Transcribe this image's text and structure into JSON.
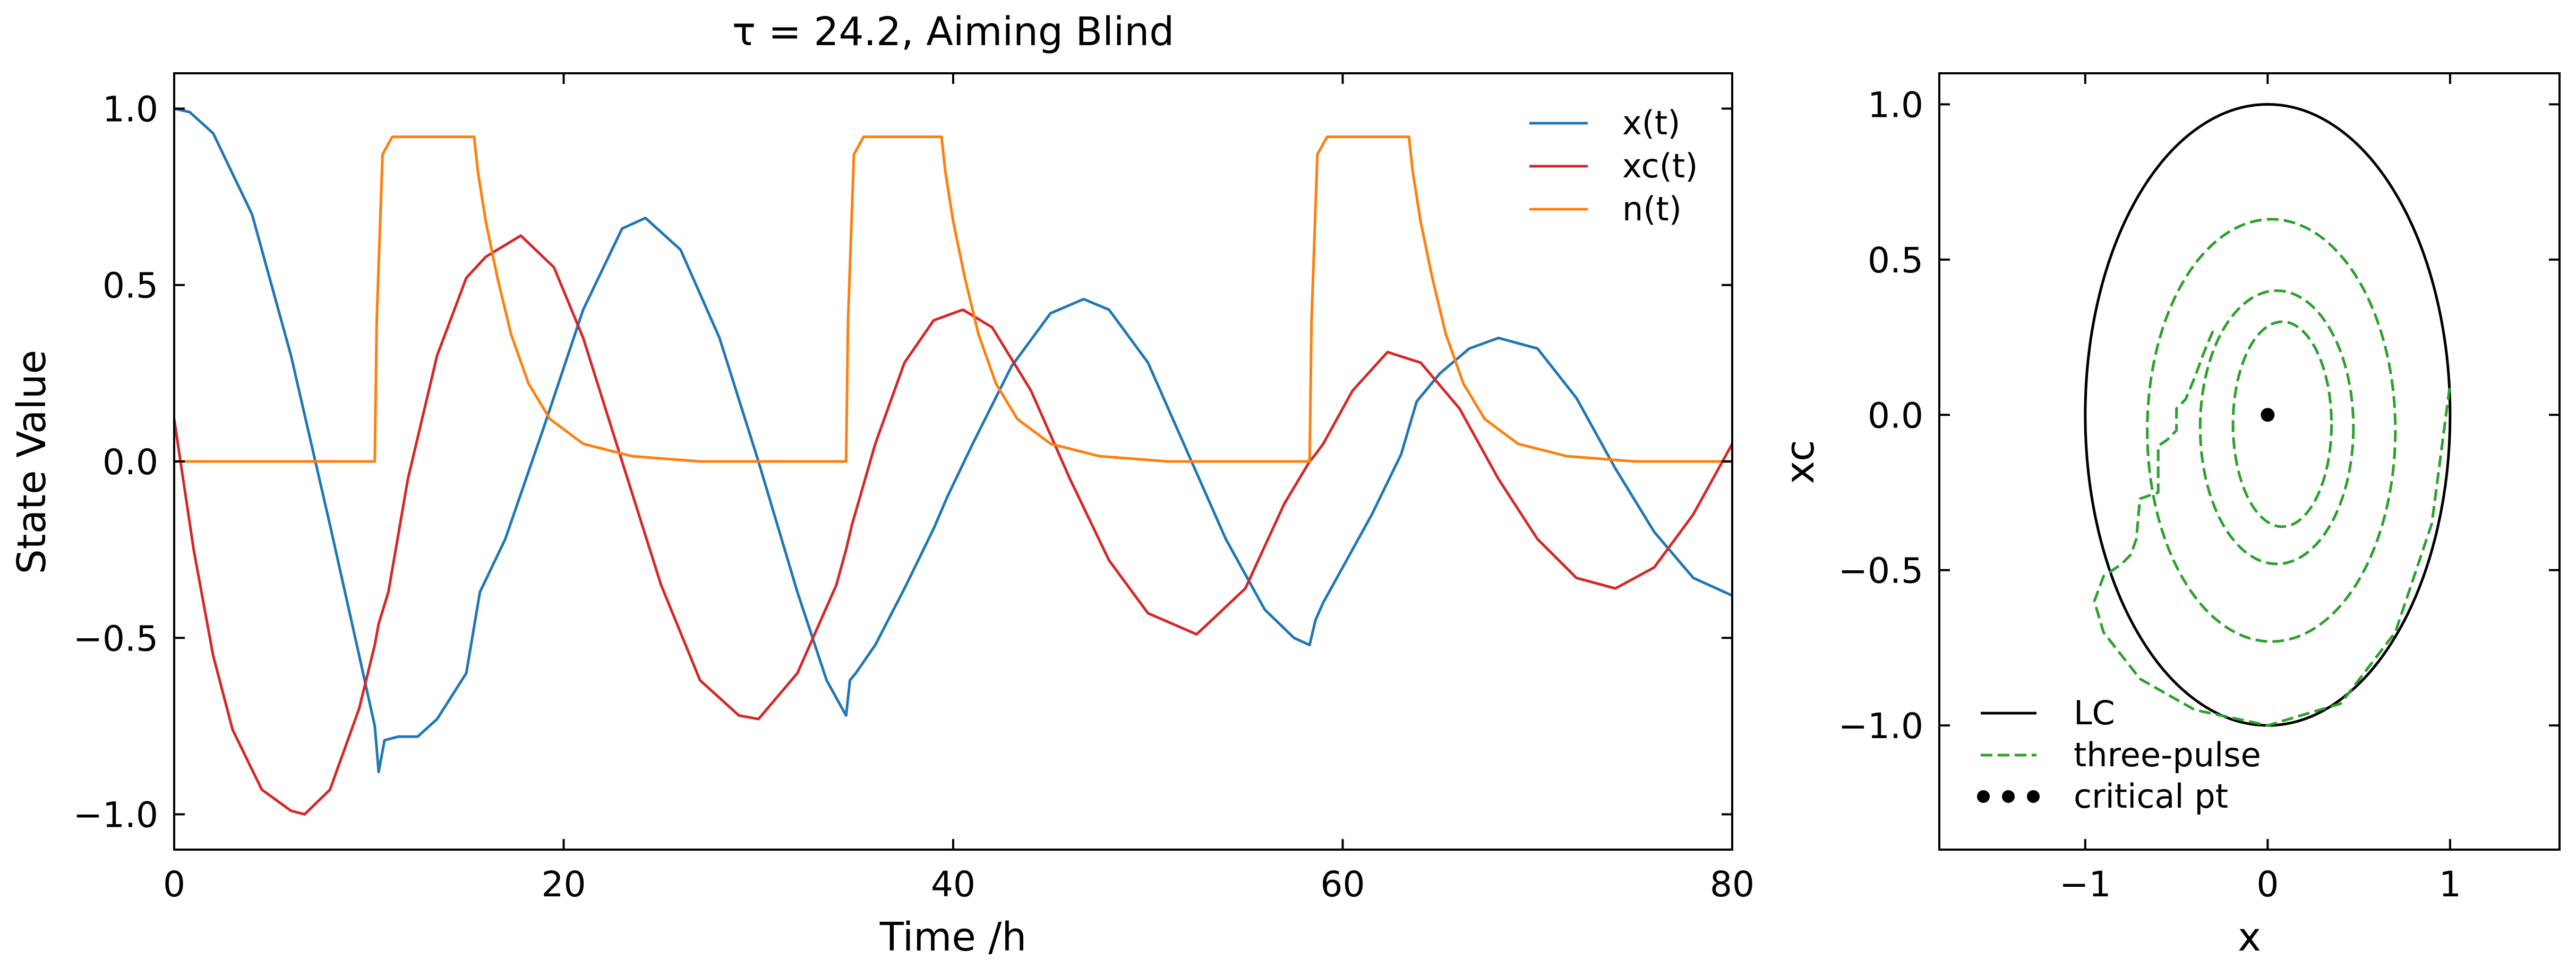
{
  "chart_data": [
    {
      "type": "line",
      "title": "τ = 24.2, Aiming Blind",
      "xlabel": "Time /h",
      "ylabel": "State Value",
      "xlim": [
        0,
        80
      ],
      "ylim": [
        -1.1,
        1.1
      ],
      "xticks": [
        0,
        20,
        40,
        60,
        80
      ],
      "xtick_labels": [
        "0",
        "20",
        "40",
        "60",
        "80"
      ],
      "yticks": [
        -1.0,
        -0.5,
        0.0,
        0.5,
        1.0
      ],
      "ytick_labels": [
        "−1.0",
        "−0.5",
        "0.0",
        "0.5",
        "1.0"
      ],
      "grid": false,
      "legend_position": "top-right",
      "series": [
        {
          "name": "x(t)",
          "color": "#1f77b4",
          "x": [
            0,
            0.8,
            2,
            4,
            6,
            8,
            9.5,
            10.3,
            10.5,
            10.8,
            11.5,
            12.5,
            13.5,
            15,
            15.7,
            17,
            19,
            21,
            23,
            24.2,
            26,
            28,
            30,
            32,
            33.5,
            34.5,
            34.7,
            35,
            36,
            37.5,
            39,
            39.7,
            41,
            43,
            45,
            46.7,
            48,
            50,
            52,
            54,
            56,
            57.5,
            58.3,
            58.6,
            59,
            60,
            61.5,
            63,
            63.8,
            65,
            66.5,
            68,
            70,
            72,
            74,
            76,
            78,
            80
          ],
          "y": [
            1.0,
            0.99,
            0.93,
            0.7,
            0.3,
            -0.18,
            -0.55,
            -0.75,
            -0.88,
            -0.79,
            -0.78,
            -0.78,
            -0.73,
            -0.6,
            -0.37,
            -0.22,
            0.1,
            0.43,
            0.66,
            0.69,
            0.6,
            0.35,
            0.0,
            -0.37,
            -0.62,
            -0.72,
            -0.62,
            -0.6,
            -0.52,
            -0.36,
            -0.19,
            -0.1,
            0.05,
            0.27,
            0.42,
            0.46,
            0.43,
            0.28,
            0.03,
            -0.22,
            -0.42,
            -0.5,
            -0.52,
            -0.45,
            -0.4,
            -0.3,
            -0.15,
            0.02,
            0.17,
            0.25,
            0.32,
            0.35,
            0.32,
            0.18,
            -0.02,
            -0.2,
            -0.33,
            -0.38
          ]
        },
        {
          "name": "xc(t)",
          "color": "#d62728",
          "x": [
            0,
            1,
            2,
            3,
            4.5,
            6,
            6.7,
            8,
            9.5,
            10.3,
            10.5,
            11,
            12,
            13.5,
            15,
            16,
            17.8,
            19.5,
            21,
            23,
            25,
            27,
            29,
            30,
            32,
            34,
            34.5,
            34.8,
            36,
            37.5,
            39,
            40.5,
            42,
            44,
            46,
            48,
            50,
            52.5,
            55,
            57,
            58.3,
            58.6,
            59,
            60.5,
            62.3,
            64,
            66,
            68,
            70,
            72,
            74,
            76,
            78,
            80
          ],
          "y": [
            0.12,
            -0.25,
            -0.55,
            -0.76,
            -0.93,
            -0.99,
            -1.0,
            -0.93,
            -0.7,
            -0.52,
            -0.46,
            -0.37,
            -0.05,
            0.3,
            0.52,
            0.58,
            0.64,
            0.55,
            0.35,
            0.0,
            -0.35,
            -0.62,
            -0.72,
            -0.73,
            -0.6,
            -0.35,
            -0.25,
            -0.18,
            0.05,
            0.28,
            0.4,
            0.43,
            0.38,
            0.2,
            -0.05,
            -0.28,
            -0.43,
            -0.49,
            -0.36,
            -0.12,
            0.0,
            0.02,
            0.05,
            0.2,
            0.31,
            0.28,
            0.15,
            -0.05,
            -0.22,
            -0.33,
            -0.36,
            -0.3,
            -0.15,
            0.05
          ]
        },
        {
          "name": "n(t)",
          "color": "#ff7f0e",
          "x": [
            0,
            10.3,
            10.4,
            10.7,
            11.2,
            15.4,
            15.6,
            16,
            16.6,
            17.3,
            18.2,
            19.3,
            21,
            23.5,
            27,
            34.5,
            34.6,
            34.9,
            35.4,
            39.4,
            39.6,
            40,
            40.6,
            41.3,
            42.2,
            43.3,
            45,
            47.5,
            51,
            58.3,
            58.4,
            58.7,
            59.2,
            63.4,
            63.6,
            64,
            64.6,
            65.3,
            66.2,
            67.3,
            69,
            71.5,
            75,
            80
          ],
          "y": [
            0.0,
            0.0,
            0.4,
            0.87,
            0.92,
            0.92,
            0.82,
            0.68,
            0.52,
            0.36,
            0.22,
            0.12,
            0.05,
            0.015,
            0.0,
            0.0,
            0.4,
            0.87,
            0.92,
            0.92,
            0.82,
            0.68,
            0.52,
            0.36,
            0.22,
            0.12,
            0.05,
            0.015,
            0.0,
            0.0,
            0.4,
            0.87,
            0.92,
            0.92,
            0.82,
            0.68,
            0.52,
            0.36,
            0.22,
            0.12,
            0.05,
            0.015,
            0.0,
            0.0
          ]
        }
      ]
    },
    {
      "type": "line",
      "title": "",
      "xlabel": "x",
      "ylabel": "xc",
      "xlim": [
        -1.8,
        1.6
      ],
      "ylim": [
        -1.4,
        1.1
      ],
      "xticks": [
        -1,
        0,
        1
      ],
      "xtick_labels": [
        "−1",
        "0",
        "1"
      ],
      "yticks": [
        -1.0,
        -0.5,
        0.0,
        0.5,
        1.0
      ],
      "ytick_labels": [
        "−1.0",
        "−0.5",
        "0.0",
        "0.5",
        "1.0"
      ],
      "grid": false,
      "legend_position": "bottom-left",
      "series": [
        {
          "name": "LC",
          "color": "#000000",
          "style": "solid",
          "ellipse": {
            "cx": 0,
            "cy": 0,
            "rx": 1.0,
            "ry": 1.0
          }
        },
        {
          "name": "three-pulse",
          "color": "#2ca02c",
          "style": "dashed",
          "x": [
            -0.3,
            -0.35,
            -0.4,
            -0.45,
            -0.5,
            -0.5,
            -0.55,
            -0.6,
            -0.6,
            -0.6,
            -0.7,
            -0.72,
            -0.75,
            -0.8,
            -0.85,
            -0.9,
            -0.95,
            -0.9,
            -0.7,
            -0.4,
            0.0,
            0.4,
            0.7,
            0.9,
            1.0
          ],
          "y": [
            0.27,
            0.2,
            0.12,
            0.05,
            0.02,
            -0.05,
            -0.08,
            -0.1,
            -0.18,
            -0.25,
            -0.27,
            -0.4,
            -0.45,
            -0.48,
            -0.5,
            -0.52,
            -0.6,
            -0.7,
            -0.85,
            -0.95,
            -1.0,
            -0.93,
            -0.7,
            -0.35,
            0.1
          ]
        },
        {
          "name": "critical pt",
          "color": "#000000",
          "style": "dotted",
          "x": [
            0
          ],
          "y": [
            0
          ]
        }
      ]
    }
  ]
}
